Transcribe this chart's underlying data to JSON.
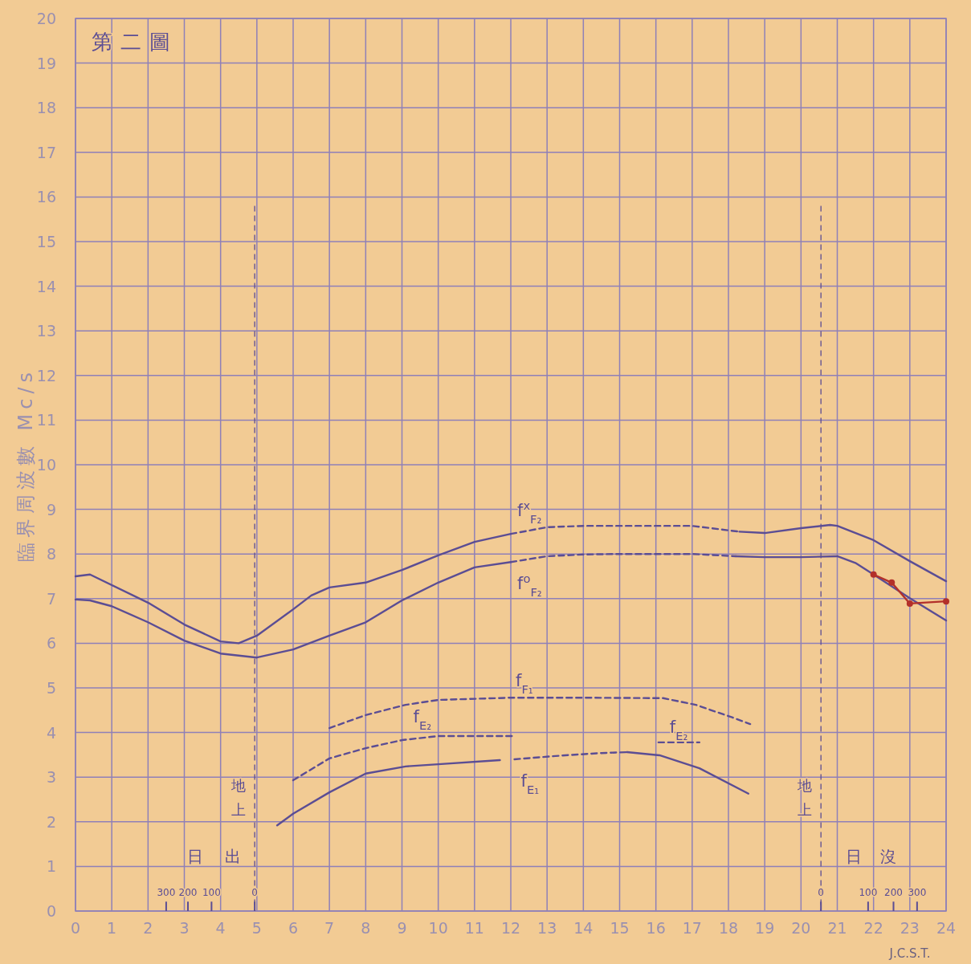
{
  "chart_data": {
    "type": "line",
    "title": "第二圖",
    "ylabel": "臨界周波數 Mc/s",
    "xlabel": "J.C.S.T.",
    "xlim": [
      0,
      24
    ],
    "ylim": [
      0,
      20
    ],
    "xticks": [
      0,
      1,
      2,
      3,
      4,
      5,
      6,
      7,
      8,
      9,
      10,
      11,
      12,
      13,
      14,
      15,
      16,
      17,
      18,
      19,
      20,
      21,
      22,
      23,
      24
    ],
    "yticks": [
      0,
      1,
      2,
      3,
      4,
      5,
      6,
      7,
      8,
      9,
      10,
      11,
      12,
      13,
      14,
      15,
      16,
      17,
      18,
      19,
      20
    ],
    "grid": true,
    "marker": "none",
    "series": [
      {
        "name": "f$^{x}$$_{F₂}$",
        "color": "#5b4d94",
        "line_style": "solid",
        "x": [
          0,
          0.4,
          2,
          3,
          4,
          4.5,
          5,
          6,
          6.5,
          7,
          8,
          9,
          10,
          11,
          12
        ],
        "values": [
          7.5,
          7.54,
          6.91,
          6.42,
          6.04,
          6.0,
          6.17,
          6.76,
          7.07,
          7.25,
          7.36,
          7.64,
          7.97,
          8.27,
          8.45
        ]
      },
      {
        "color": "#5b4d94",
        "line_style": "dashed",
        "x": [
          12,
          13,
          14,
          15,
          16,
          17,
          18.3
        ],
        "values": [
          8.45,
          8.6,
          8.63,
          8.63,
          8.63,
          8.63,
          8.5
        ]
      },
      {
        "color": "#5b4d94",
        "line_style": "solid",
        "x": [
          18.3,
          19,
          20,
          20.8,
          21,
          22,
          23,
          24
        ],
        "values": [
          8.5,
          8.47,
          8.58,
          8.65,
          8.63,
          8.31,
          7.84,
          7.39
        ]
      },
      {
        "name": "f$^{o}$$_{F₂}$",
        "color": "#5b4d94",
        "line_style": "solid",
        "x": [
          0,
          0.4,
          1,
          2,
          3,
          4,
          5,
          6,
          7,
          8,
          9,
          10,
          11,
          12
        ],
        "values": [
          6.98,
          6.96,
          6.83,
          6.47,
          6.06,
          5.77,
          5.68,
          5.86,
          6.17,
          6.47,
          6.96,
          7.36,
          7.7,
          7.82
        ]
      },
      {
        "color": "#5b4d94",
        "line_style": "dashed",
        "x": [
          12,
          13,
          14,
          15,
          16,
          17,
          18.2
        ],
        "values": [
          7.82,
          7.95,
          7.99,
          8.0,
          8.0,
          8.0,
          7.95
        ]
      },
      {
        "color": "#5b4d94",
        "line_style": "solid",
        "x": [
          18.2,
          19,
          20,
          21,
          21.5,
          22,
          23,
          24
        ],
        "values": [
          7.95,
          7.93,
          7.93,
          7.95,
          7.8,
          7.54,
          7.01,
          6.51
        ]
      },
      {
        "name": "f$_{F₁}$",
        "color": "#5b4d94",
        "line_style": "dashed",
        "x": [
          7.0,
          8.0,
          9.1,
          10,
          12,
          14,
          16.2,
          17.1,
          18.1,
          18.6
        ],
        "values": [
          4.1,
          4.39,
          4.62,
          4.73,
          4.78,
          4.78,
          4.77,
          4.62,
          4.34,
          4.19
        ]
      },
      {
        "name": "f$_{E₂}$",
        "color": "#5b4d94",
        "line_style": "dashed",
        "x": [
          6.0,
          7.0,
          8.0,
          9.0,
          10.0,
          12.05
        ],
        "values": [
          2.93,
          3.42,
          3.65,
          3.83,
          3.92,
          3.92
        ]
      },
      {
        "name": "f$_{E₂}$",
        "color": "#5b4d94",
        "line_style": "dashed",
        "x": [
          16.07,
          17.2
        ],
        "values": [
          3.78,
          3.78
        ]
      },
      {
        "color": "#5b4d94",
        "line_style": "solid",
        "x": [
          5.56,
          6.0,
          7.0,
          8.0,
          9.1,
          10.0,
          11.7
        ],
        "values": [
          1.92,
          2.18,
          2.66,
          3.08,
          3.24,
          3.29,
          3.38
        ]
      },
      {
        "name": "f$_{E₁}$",
        "color": "#5b4d94",
        "line_style": "dashed",
        "x": [
          12.1,
          13.5,
          14.5,
          15.2
        ],
        "values": [
          3.4,
          3.49,
          3.54,
          3.56
        ]
      },
      {
        "color": "#5b4d94",
        "line_style": "solid",
        "x": [
          15.2,
          16.1,
          17.2,
          18.55
        ],
        "values": [
          3.56,
          3.49,
          3.2,
          2.63
        ]
      },
      {
        "color": "#b3302a",
        "line_style": "solid",
        "marker": "circle",
        "x": [
          22,
          22.5,
          23,
          24
        ],
        "values": [
          7.54,
          7.36,
          6.89,
          6.94
        ]
      }
    ],
    "ref_lines": [
      {
        "axis": "x",
        "value": 4.94,
        "label": "地上",
        "line_style": "dashed",
        "color": "#5b4d94"
      },
      {
        "axis": "x",
        "value": 20.55,
        "label": "地上",
        "line_style": "dashed",
        "color": "#5b4d94"
      }
    ],
    "annotations": [
      "日",
      "出",
      "日",
      "沒",
      "300",
      "200",
      "100",
      "0",
      "0",
      "100",
      "200",
      "300"
    ]
  }
}
